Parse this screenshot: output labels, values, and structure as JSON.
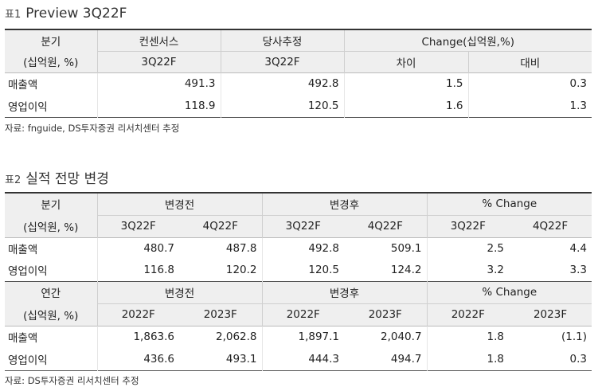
{
  "table1": {
    "num": "표1",
    "title": "Preview 3Q22F",
    "hdr_label_1": "분기",
    "hdr_label_2": "(십억원, %)",
    "col_consensus": "컨센서스",
    "col_estimate": "당사추정",
    "col_change": "Change(십억원,%)",
    "sub_consensus": "3Q22F",
    "sub_estimate": "3Q22F",
    "sub_diff": "차이",
    "sub_ratio": "대비",
    "rows": [
      {
        "label": "매출액",
        "v1": "491.3",
        "v2": "492.8",
        "v3": "1.5",
        "v4": "0.3"
      },
      {
        "label": "영업이익",
        "v1": "118.9",
        "v2": "120.5",
        "v3": "1.6",
        "v4": "1.3"
      }
    ],
    "source": "자료: fnguide, DS투자증권 리서치센터 추정"
  },
  "table2": {
    "num": "표2",
    "title": "실적 전망 변경",
    "quarterly": {
      "hdr_label_1": "분기",
      "hdr_label_2": "(십억원, %)",
      "group_before": "변경전",
      "group_after": "변경후",
      "group_change": "% Change",
      "periods": [
        "3Q22F",
        "4Q22F",
        "3Q22F",
        "4Q22F",
        "3Q22F",
        "4Q22F"
      ],
      "rows": [
        {
          "label": "매출액",
          "values": [
            "480.7",
            "487.8",
            "492.8",
            "509.1",
            "2.5",
            "4.4"
          ]
        },
        {
          "label": "영업이익",
          "values": [
            "116.8",
            "120.2",
            "120.5",
            "124.2",
            "3.2",
            "3.3"
          ]
        }
      ]
    },
    "annual": {
      "hdr_label_1": "연간",
      "hdr_label_2": "(십억원, %)",
      "group_before": "변경전",
      "group_after": "변경후",
      "group_change": "% Change",
      "periods": [
        "2022F",
        "2023F",
        "2022F",
        "2023F",
        "2022F",
        "2023F"
      ],
      "rows": [
        {
          "label": "매출액",
          "values": [
            "1,863.6",
            "2,062.8",
            "1,897.1",
            "2,040.7",
            "1.8",
            "(1.1)"
          ]
        },
        {
          "label": "영업이익",
          "values": [
            "436.6",
            "493.1",
            "444.3",
            "494.7",
            "1.8",
            "0.3"
          ]
        }
      ]
    },
    "source": "자료: DS투자증권 리서치센터 추정"
  }
}
